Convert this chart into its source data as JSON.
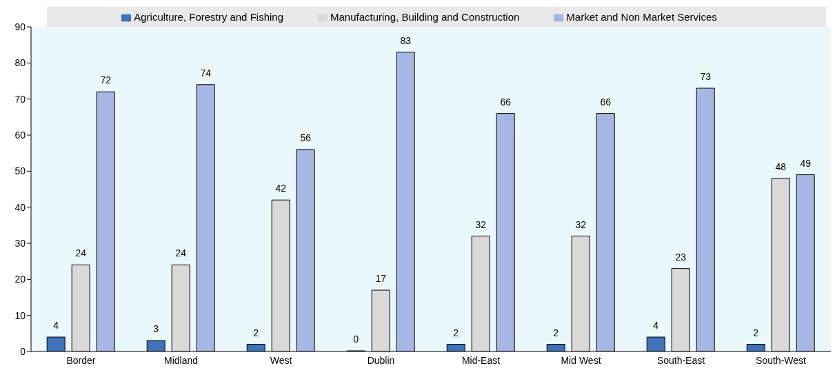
{
  "chart_data": {
    "type": "bar",
    "categories": [
      "Border",
      "Midland",
      "West",
      "Dublin",
      "Mid-East",
      "Mid West",
      "South-East",
      "South-West"
    ],
    "series": [
      {
        "name": "Agriculture, Forestry and Fishing",
        "color": "#3f72b6",
        "values": [
          4,
          3,
          2,
          0,
          2,
          2,
          4,
          2
        ]
      },
      {
        "name": "Manufacturing, Building and Construction",
        "color": "#d9d9d9",
        "values": [
          24,
          24,
          42,
          17,
          32,
          32,
          23,
          48
        ]
      },
      {
        "name": "Market and Non Market Services",
        "color": "#a6b7e3",
        "values": [
          72,
          74,
          56,
          83,
          66,
          66,
          73,
          49
        ]
      }
    ],
    "ylim": [
      0,
      90
    ],
    "yticks": [
      0,
      10,
      20,
      30,
      40,
      50,
      60,
      70,
      80,
      90
    ],
    "data_labels": true,
    "legend": "top"
  }
}
